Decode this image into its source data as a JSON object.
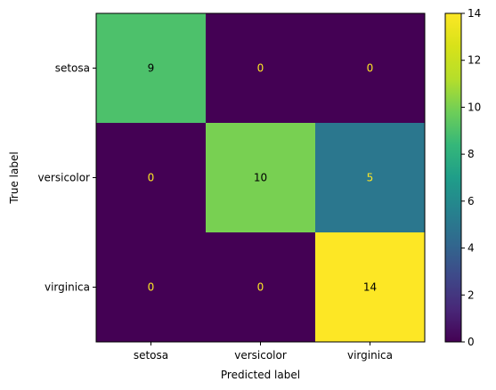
{
  "chart_data": {
    "type": "heatmap",
    "title": "",
    "xlabel": "Predicted label",
    "ylabel": "True label",
    "x_categories": [
      "setosa",
      "versicolor",
      "virginica"
    ],
    "y_categories": [
      "setosa",
      "versicolor",
      "virginica"
    ],
    "values": [
      [
        9,
        0,
        0
      ],
      [
        0,
        10,
        5
      ],
      [
        0,
        0,
        14
      ]
    ],
    "colormap": "viridis",
    "vmin": 0,
    "vmax": 14,
    "colorbar_ticks": [
      0,
      2,
      4,
      6,
      8,
      10,
      12,
      14
    ],
    "grid": false
  }
}
